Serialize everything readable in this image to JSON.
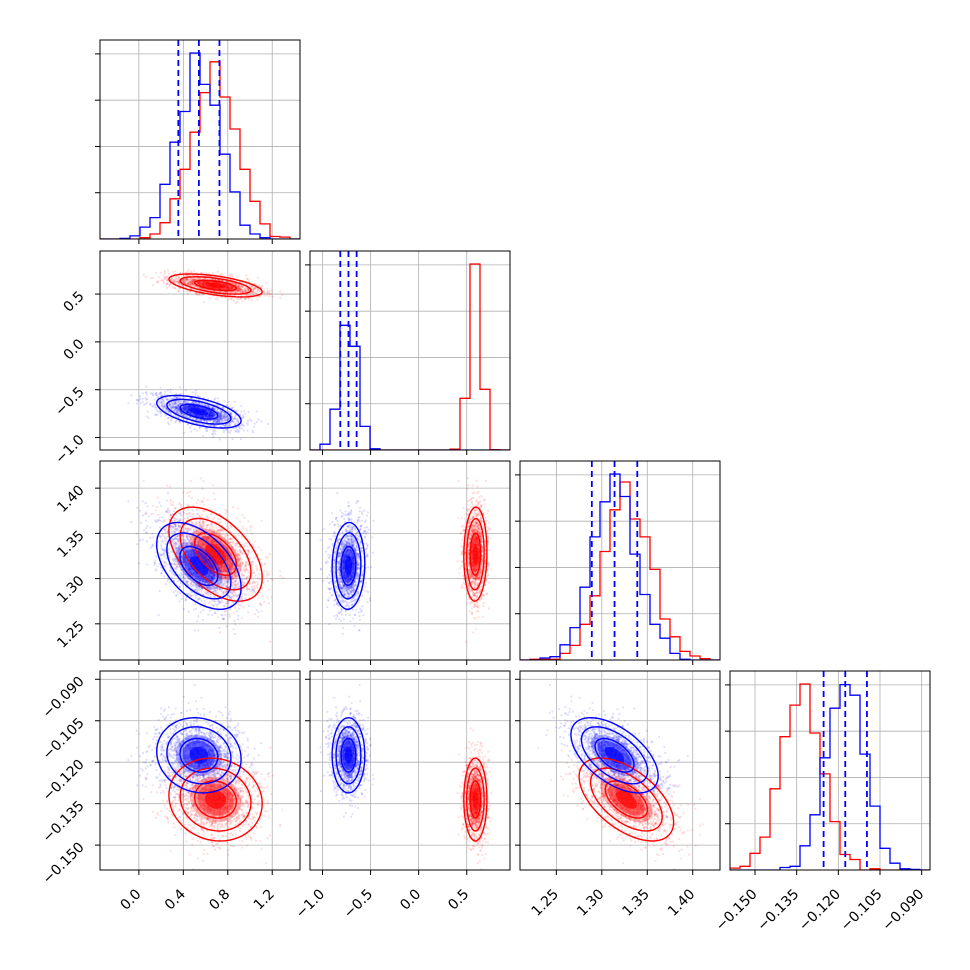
{
  "colors": {
    "series_a": "#ff0000",
    "series_b": "#0000ff",
    "grid": "#b0b0b0"
  },
  "chart_data": {
    "type": "corner",
    "grid": true,
    "series": [
      {
        "color": "#ff0000",
        "means": [
          0.69,
          0.59,
          1.327,
          -0.1335
        ],
        "sds": [
          0.21,
          0.06,
          0.026,
          0.0075
        ],
        "corr": [
          [
            1,
            -0.55,
            -0.5,
            -0.1
          ],
          [
            -0.55,
            1,
            0.05,
            0.0
          ],
          [
            -0.5,
            0.05,
            1,
            -0.55
          ],
          [
            -0.1,
            0.0,
            -0.55,
            1
          ]
        ]
      },
      {
        "color": "#0000ff",
        "means": [
          0.54,
          -0.73,
          1.314,
          -0.1175
        ],
        "sds": [
          0.19,
          0.085,
          0.024,
          0.0068
        ],
        "corr": [
          [
            1,
            -0.55,
            -0.5,
            -0.1
          ],
          [
            -0.55,
            1,
            0.05,
            0.0
          ],
          [
            -0.5,
            0.05,
            1,
            -0.55
          ],
          [
            -0.1,
            0.0,
            -0.55,
            1
          ]
        ]
      }
    ],
    "quantiles_series": "#0000ff",
    "quantiles": [
      [
        0.355,
        0.54,
        0.725
      ],
      [
        -0.815,
        -0.73,
        -0.645
      ],
      [
        1.289,
        1.314,
        1.339
      ],
      [
        -0.1253,
        -0.1175,
        -0.1097
      ]
    ],
    "ranges": [
      [
        -0.35,
        1.45
      ],
      [
        -1.13,
        0.95
      ],
      [
        1.21,
        1.43
      ],
      [
        -0.159,
        -0.087
      ]
    ],
    "ticks": [
      [
        0.0,
        0.4,
        0.8,
        1.2
      ],
      [
        -1.0,
        -0.5,
        0.0,
        0.5
      ],
      [
        1.25,
        1.3,
        1.35,
        1.4
      ],
      [
        -0.15,
        -0.135,
        -0.12,
        -0.105,
        -0.09
      ]
    ],
    "tick_labels": [
      [
        "0.0",
        "0.4",
        "0.8",
        "1.2"
      ],
      [
        "−1.0",
        "−0.5",
        "0.0",
        "0.5"
      ],
      [
        "1.25",
        "1.30",
        "1.35",
        "1.40"
      ],
      [
        "−0.150",
        "−0.135",
        "−0.120",
        "−0.105",
        "−0.090"
      ]
    ],
    "hist_bins": 20
  }
}
